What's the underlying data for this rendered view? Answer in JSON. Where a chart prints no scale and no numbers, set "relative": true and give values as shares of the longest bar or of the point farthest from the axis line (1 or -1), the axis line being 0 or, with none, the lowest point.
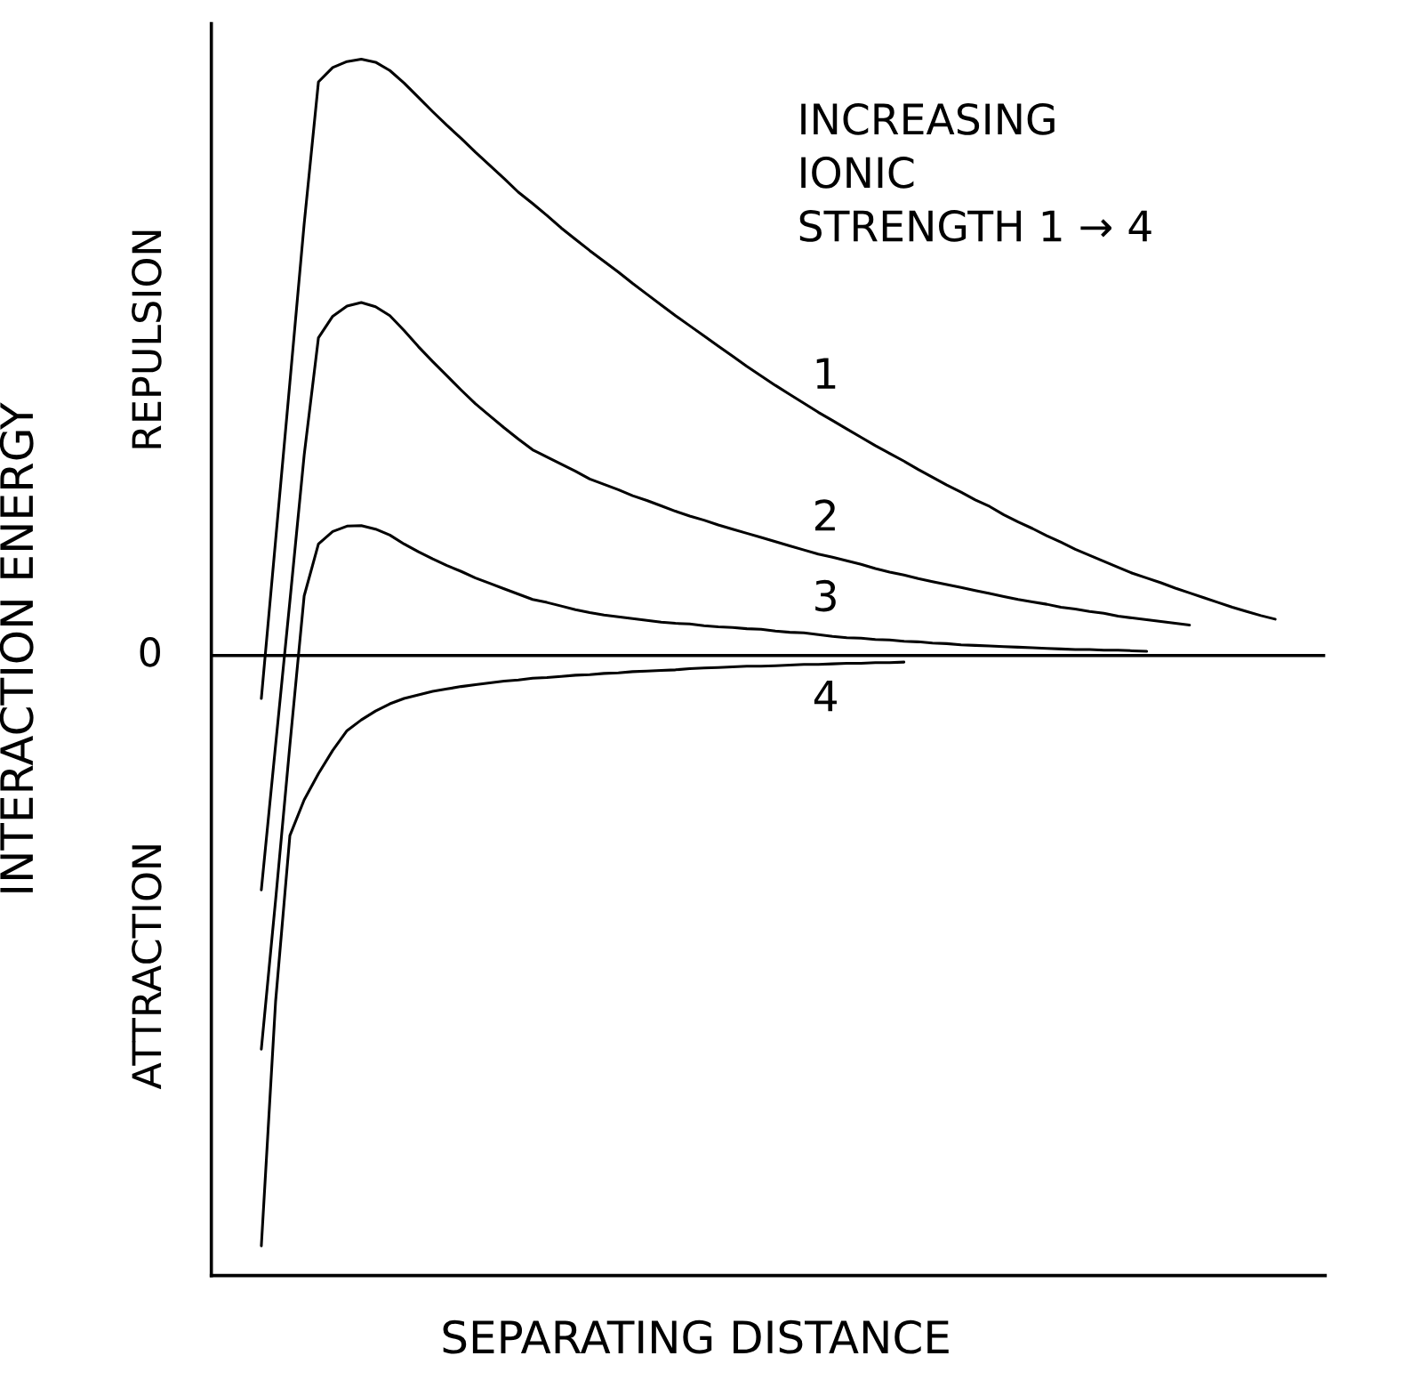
{
  "chart_data": {
    "type": "line",
    "relative": true,
    "xlabel": "SEPARATING DISTANCE",
    "ylabel": "INTERACTION ENERGY",
    "annotations": [
      "INCREASING\nIONIC\nSTRENGTH 1 → 4",
      "REPULSION",
      "ATTRACTION"
    ],
    "ref_lines": [
      {
        "axis": "y",
        "value": 0,
        "label": "0",
        "color": "#000000"
      }
    ],
    "line_style": "solid",
    "categories": [
      null,
      null,
      null,
      null,
      null,
      null,
      null,
      null,
      null,
      null,
      null,
      null,
      null,
      null,
      null,
      null,
      null,
      null,
      null,
      null,
      null,
      null,
      null,
      null,
      null,
      null,
      null,
      null,
      null,
      null,
      null,
      null,
      null,
      null,
      null,
      null,
      null,
      null,
      null,
      null,
      null,
      null,
      null,
      null,
      null,
      null,
      null,
      null,
      null,
      null,
      null,
      null,
      null,
      null,
      null,
      null,
      null,
      null,
      null,
      null,
      null,
      null,
      null,
      null,
      null,
      null,
      null,
      null,
      null,
      null,
      null,
      null,
      null,
      null,
      null,
      null,
      null,
      null
    ],
    "series": [
      {
        "name": "1",
        "color": "#000000",
        "values": [
          null,
          null,
          null,
          -0.072,
          0.193,
          0.458,
          0.724,
          0.962,
          0.986,
          0.996,
          1,
          0.995,
          0.981,
          0.96,
          0.936,
          0.912,
          0.889,
          0.867,
          0.844,
          0.822,
          0.8,
          0.777,
          0.758,
          0.738,
          0.717,
          0.698,
          0.679,
          0.661,
          0.643,
          0.624,
          0.606,
          0.588,
          0.57,
          0.553,
          0.536,
          0.519,
          0.502,
          0.485,
          0.469,
          0.453,
          0.438,
          0.423,
          0.408,
          0.394,
          0.38,
          0.366,
          0.352,
          0.339,
          0.326,
          0.312,
          0.299,
          0.286,
          0.274,
          0.261,
          0.25,
          0.236,
          0.224,
          0.213,
          0.201,
          0.19,
          0.178,
          0.168,
          0.158,
          0.148,
          0.138,
          0.13,
          0.122,
          0.113,
          0.105,
          0.097,
          0.089,
          0.081,
          0.074,
          0.067,
          0.061,
          null,
          null,
          null
        ]
      },
      {
        "name": "2",
        "color": "#000000",
        "values": [
          null,
          null,
          null,
          -0.393,
          -0.15,
          0.091,
          0.336,
          0.533,
          0.569,
          0.586,
          0.592,
          0.585,
          0.57,
          0.545,
          0.518,
          0.493,
          0.469,
          0.445,
          0.422,
          0.402,
          0.382,
          0.363,
          0.345,
          0.333,
          0.321,
          0.309,
          0.296,
          0.287,
          0.278,
          0.268,
          0.26,
          0.251,
          0.242,
          0.234,
          0.227,
          0.219,
          0.212,
          0.205,
          0.198,
          0.191,
          0.184,
          0.177,
          0.17,
          0.165,
          0.159,
          0.153,
          0.146,
          0.14,
          0.135,
          0.129,
          0.124,
          0.119,
          0.114,
          0.109,
          0.104,
          0.099,
          0.094,
          0.09,
          0.086,
          0.081,
          0.078,
          0.074,
          0.071,
          0.066,
          0.063,
          0.06,
          0.057,
          0.054,
          0.051,
          null,
          null,
          null,
          null,
          null,
          null,
          null,
          null,
          null
        ]
      },
      {
        "name": "3",
        "color": "#000000",
        "values": [
          null,
          null,
          null,
          -0.66,
          -0.41,
          -0.15,
          0.1,
          0.187,
          0.208,
          0.217,
          0.218,
          0.212,
          0.202,
          0.187,
          0.174,
          0.162,
          0.151,
          0.141,
          0.13,
          0.121,
          0.112,
          0.103,
          0.094,
          0.089,
          0.083,
          0.077,
          0.072,
          0.068,
          0.065,
          0.062,
          0.059,
          0.056,
          0.054,
          0.053,
          0.05,
          0.048,
          0.047,
          0.045,
          0.044,
          0.041,
          0.039,
          0.038,
          0.035,
          0.032,
          0.03,
          0.029,
          0.027,
          0.026,
          0.024,
          0.023,
          0.021,
          0.02,
          0.018,
          0.017,
          0.016,
          0.015,
          0.014,
          0.013,
          0.012,
          0.011,
          0.01,
          0.01,
          0.009,
          0.009,
          0.008,
          0.007,
          null,
          null,
          null,
          null,
          null,
          null,
          null,
          null,
          null,
          null,
          null,
          null
        ]
      },
      {
        "name": "4",
        "color": "#000000",
        "values": [
          null,
          null,
          null,
          -0.99,
          -0.58,
          -0.302,
          -0.242,
          -0.198,
          -0.159,
          -0.126,
          -0.108,
          -0.093,
          -0.081,
          -0.072,
          -0.066,
          -0.06,
          -0.056,
          -0.052,
          -0.049,
          -0.046,
          -0.043,
          -0.041,
          -0.038,
          -0.037,
          -0.035,
          -0.033,
          -0.032,
          -0.03,
          -0.029,
          -0.027,
          -0.026,
          -0.025,
          -0.024,
          -0.022,
          -0.021,
          -0.02,
          -0.019,
          -0.018,
          -0.018,
          -0.017,
          -0.016,
          -0.015,
          -0.015,
          -0.014,
          -0.013,
          -0.013,
          -0.012,
          -0.012,
          -0.011,
          null,
          null,
          null,
          null,
          null,
          null,
          null,
          null,
          null,
          null,
          null,
          null,
          null,
          null,
          null,
          null,
          null,
          null,
          null,
          null,
          null,
          null,
          null,
          null,
          null,
          null,
          null,
          null,
          null
        ]
      }
    ]
  }
}
